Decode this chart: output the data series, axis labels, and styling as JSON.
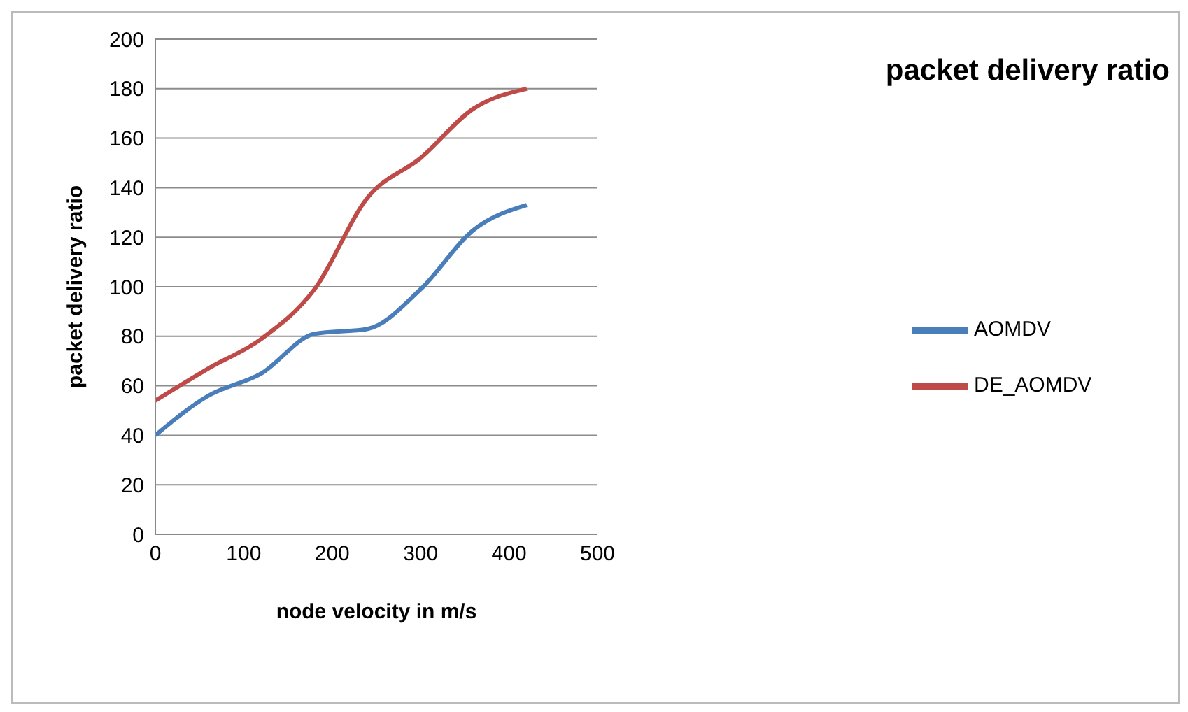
{
  "chart_data": {
    "type": "line",
    "title": "packet delivery ratio",
    "xlabel": "node velocity in m/s",
    "ylabel": "packet delivery ratio",
    "x": [
      0,
      60,
      120,
      180,
      240,
      300,
      360,
      420
    ],
    "series": [
      {
        "name": "AOMDV",
        "color": "#4a7ebb",
        "values": [
          40,
          56,
          65,
          81,
          83,
          99,
          123,
          133
        ]
      },
      {
        "name": "DE_AOMDV",
        "color": "#be4b48",
        "values": [
          54,
          67,
          79,
          99,
          136,
          152,
          172,
          180
        ]
      }
    ],
    "xlim": [
      0,
      500
    ],
    "xticks": [
      0,
      100,
      200,
      300,
      400,
      500
    ],
    "ylim": [
      0,
      200
    ],
    "yticks": [
      0,
      20,
      40,
      60,
      80,
      100,
      120,
      140,
      160,
      180,
      200
    ],
    "grid": "y",
    "legend": "right",
    "marker": "none",
    "line_style": "solid"
  }
}
